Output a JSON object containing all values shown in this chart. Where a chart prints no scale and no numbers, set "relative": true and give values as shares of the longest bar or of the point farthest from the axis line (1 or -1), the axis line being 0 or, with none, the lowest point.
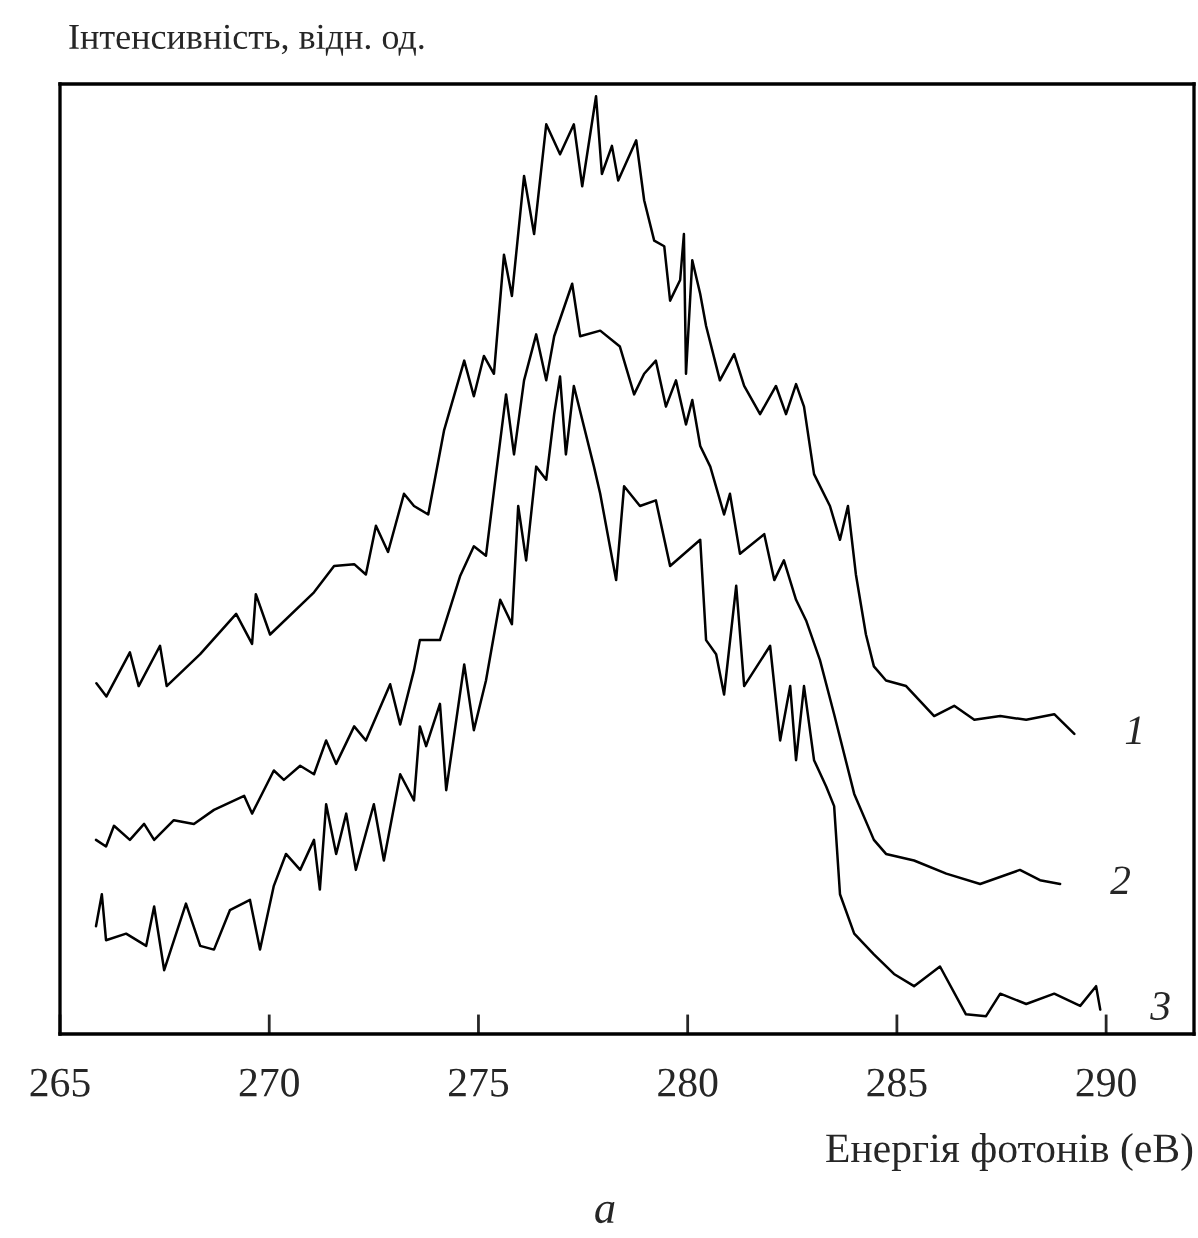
{
  "chart_data": {
    "type": "line",
    "relative": true,
    "xlabel": "Енергія фотонів (еВ)",
    "ylabel": "Інтенсивність, відн. од.",
    "xlim": [
      265,
      292.1
    ],
    "xticks": [
      265,
      270,
      275,
      280,
      285,
      290
    ],
    "grid": false,
    "legend": false,
    "marker": "none",
    "line_style": "solid",
    "annotations": [
      "a"
    ],
    "series": [
      {
        "name": "1",
        "color": "#000000",
        "x": [
          265.87,
          266.11,
          266.67,
          266.88,
          267.39,
          267.55,
          268.35,
          269.21,
          269.59,
          269.68,
          270.02,
          271.07,
          271.55,
          272.03,
          272.31,
          272.55,
          272.84,
          273.22,
          273.46,
          273.8,
          274.18,
          274.66,
          274.89,
          275.13,
          275.37,
          275.61,
          275.8,
          276.09,
          276.33,
          276.62,
          276.95,
          277.28,
          277.48,
          277.81,
          277.95,
          278.19,
          278.34,
          278.77,
          278.96,
          279.2,
          279.44,
          279.58,
          279.82,
          279.91,
          279.96,
          280.11,
          280.3,
          280.44,
          280.77,
          281.11,
          281.35,
          281.73,
          282.11,
          282.35,
          282.59,
          282.78,
          283.02,
          283.4,
          283.64,
          283.83,
          284.02,
          284.26,
          284.45,
          284.74,
          285.22,
          285.89,
          286.37,
          286.85,
          287.47,
          288.09,
          288.76,
          289.24
        ],
        "values": [
          0.374,
          0.36,
          0.407,
          0.371,
          0.414,
          0.371,
          0.405,
          0.448,
          0.416,
          0.469,
          0.426,
          0.471,
          0.499,
          0.501,
          0.49,
          0.542,
          0.514,
          0.576,
          0.563,
          0.554,
          0.644,
          0.718,
          0.68,
          0.723,
          0.704,
          0.831,
          0.787,
          0.915,
          0.853,
          0.97,
          0.938,
          0.97,
          0.904,
          1.0,
          0.917,
          0.947,
          0.91,
          0.953,
          0.889,
          0.846,
          0.84,
          0.782,
          0.804,
          0.853,
          0.704,
          0.825,
          0.789,
          0.755,
          0.697,
          0.725,
          0.691,
          0.661,
          0.691,
          0.661,
          0.693,
          0.669,
          0.597,
          0.563,
          0.527,
          0.563,
          0.49,
          0.426,
          0.392,
          0.377,
          0.371,
          0.339,
          0.35,
          0.335,
          0.339,
          0.335,
          0.341,
          0.32
        ]
      },
      {
        "name": "2",
        "color": "#000000",
        "x": [
          265.86,
          266.1,
          266.29,
          266.67,
          267.01,
          267.25,
          267.72,
          268.2,
          268.68,
          269.4,
          269.59,
          270.11,
          270.35,
          270.74,
          271.07,
          271.36,
          271.6,
          272.03,
          272.31,
          272.89,
          273.13,
          273.46,
          273.6,
          274.08,
          274.56,
          274.89,
          275.18,
          275.42,
          275.66,
          275.85,
          276.09,
          276.38,
          276.62,
          276.81,
          277.24,
          277.43,
          277.91,
          278.38,
          278.72,
          278.96,
          279.24,
          279.48,
          279.72,
          279.96,
          280.11,
          280.3,
          280.54,
          280.87,
          281.01,
          281.25,
          281.83,
          282.07,
          282.3,
          282.59,
          282.83,
          283.16,
          283.5,
          283.98,
          284.45,
          284.74,
          285.41,
          286.18,
          286.99,
          287.94,
          288.42,
          288.9
        ],
        "values": [
          0.207,
          0.2,
          0.222,
          0.207,
          0.224,
          0.207,
          0.228,
          0.224,
          0.239,
          0.254,
          0.235,
          0.281,
          0.271,
          0.286,
          0.277,
          0.313,
          0.288,
          0.328,
          0.313,
          0.373,
          0.33,
          0.388,
          0.42,
          0.42,
          0.488,
          0.52,
          0.51,
          0.597,
          0.682,
          0.618,
          0.697,
          0.746,
          0.697,
          0.744,
          0.8,
          0.744,
          0.75,
          0.733,
          0.682,
          0.704,
          0.718,
          0.669,
          0.697,
          0.65,
          0.676,
          0.627,
          0.605,
          0.554,
          0.576,
          0.512,
          0.533,
          0.484,
          0.505,
          0.463,
          0.441,
          0.399,
          0.341,
          0.256,
          0.207,
          0.192,
          0.185,
          0.171,
          0.16,
          0.175,
          0.164,
          0.16
        ]
      },
      {
        "name": "3",
        "color": "#000000",
        "x": [
          265.86,
          266.0,
          266.1,
          266.58,
          267.06,
          267.25,
          267.49,
          268.01,
          268.35,
          268.68,
          269.06,
          269.54,
          269.78,
          270.11,
          270.4,
          270.74,
          271.07,
          271.21,
          271.36,
          271.6,
          271.84,
          272.07,
          272.5,
          272.74,
          273.13,
          273.46,
          273.6,
          273.75,
          274.08,
          274.23,
          274.66,
          274.89,
          275.18,
          275.52,
          275.8,
          275.95,
          276.14,
          276.38,
          276.62,
          276.81,
          276.95,
          277.09,
          277.28,
          277.76,
          277.91,
          278.29,
          278.48,
          278.86,
          279.24,
          279.58,
          280.3,
          280.44,
          280.68,
          280.87,
          281.16,
          281.35,
          281.97,
          282.21,
          282.45,
          282.59,
          282.78,
          283.02,
          283.31,
          283.5,
          283.64,
          283.98,
          284.45,
          284.93,
          285.41,
          286.03,
          286.65,
          287.13,
          287.47,
          288.09,
          288.76,
          289.38,
          289.76,
          289.86
        ],
        "values": [
          0.115,
          0.149,
          0.1,
          0.107,
          0.094,
          0.136,
          0.068,
          0.139,
          0.094,
          0.09,
          0.132,
          0.143,
          0.09,
          0.158,
          0.192,
          0.175,
          0.207,
          0.154,
          0.245,
          0.192,
          0.235,
          0.175,
          0.245,
          0.185,
          0.277,
          0.249,
          0.328,
          0.307,
          0.352,
          0.26,
          0.394,
          0.324,
          0.377,
          0.463,
          0.437,
          0.563,
          0.505,
          0.605,
          0.591,
          0.661,
          0.701,
          0.618,
          0.691,
          0.605,
          0.576,
          0.484,
          0.584,
          0.563,
          0.569,
          0.499,
          0.527,
          0.42,
          0.405,
          0.362,
          0.478,
          0.371,
          0.414,
          0.313,
          0.371,
          0.292,
          0.371,
          0.292,
          0.264,
          0.243,
          0.149,
          0.107,
          0.085,
          0.064,
          0.051,
          0.072,
          0.021,
          0.019,
          0.043,
          0.032,
          0.043,
          0.03,
          0.051,
          0.026
        ]
      }
    ]
  }
}
